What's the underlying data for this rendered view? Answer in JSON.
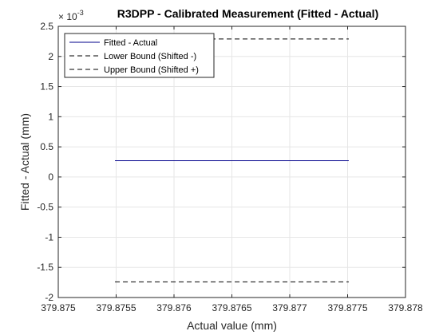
{
  "chart_data": {
    "type": "line",
    "title": "R3DPP - Calibrated Measurement (Fitted - Actual)",
    "xlabel": "Actual value (mm)",
    "ylabel": "Fitted - Actual (mm)",
    "y_exponent_base": "× 10",
    "y_exponent_power": "-3",
    "xlim": [
      379.875,
      379.878
    ],
    "ylim": [
      -2,
      2.5
    ],
    "xticks": [
      379.875,
      379.8755,
      379.876,
      379.8765,
      379.877,
      379.8775,
      379.878
    ],
    "xtick_labels": [
      "379.875",
      "379.8755",
      "379.876",
      "379.8765",
      "379.877",
      "379.8775",
      "379.878"
    ],
    "yticks": [
      -2,
      -1.5,
      -1,
      -0.5,
      0,
      0.5,
      1,
      1.5,
      2,
      2.5
    ],
    "ytick_labels": [
      "-2",
      "-1.5",
      "-1",
      "-0.5",
      "0",
      "0.5",
      "1",
      "1.5",
      "2",
      "2.5"
    ],
    "grid": true,
    "legend_position": "top-left",
    "series": [
      {
        "name": "Fitted - Actual",
        "style": "solid",
        "color": "#00008B",
        "x": [
          379.87549,
          379.87751
        ],
        "y": [
          0.27,
          0.27
        ]
      },
      {
        "name": "Lower Bound (Shifted -)",
        "style": "dashed",
        "color": "#000000",
        "x": [
          379.87549,
          379.87751
        ],
        "y": [
          -1.74,
          -1.74
        ]
      },
      {
        "name": "Upper Bound (Shifted +)",
        "style": "dashed",
        "color": "#000000",
        "x": [
          379.87549,
          379.87751
        ],
        "y": [
          2.29,
          2.29
        ]
      }
    ]
  }
}
